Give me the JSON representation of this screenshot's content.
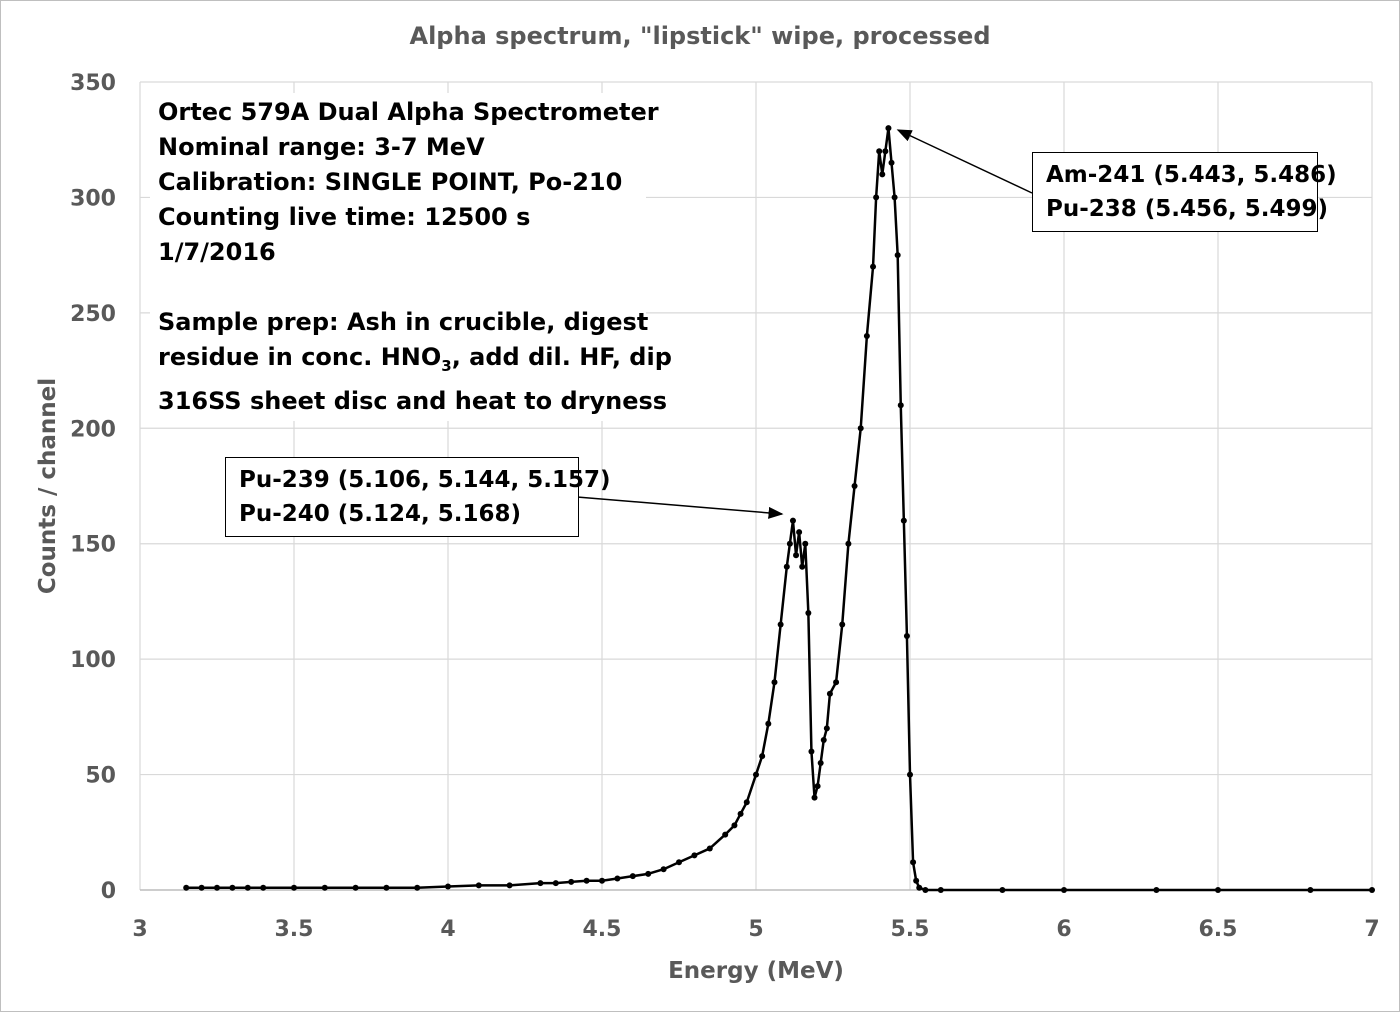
{
  "chart_data": {
    "type": "line",
    "title": "Alpha spectrum, \"lipstick\" wipe, processed",
    "xlabel": "Energy (MeV)",
    "ylabel": "Counts / channel",
    "xlim": [
      3,
      7
    ],
    "ylim": [
      0,
      350
    ],
    "x_ticks": [
      3,
      3.5,
      4,
      4.5,
      5,
      5.5,
      6,
      6.5,
      7
    ],
    "x_tick_labels": [
      "3",
      "3.5",
      "4",
      "4.5",
      "5",
      "5.5",
      "6",
      "6.5",
      "7"
    ],
    "y_ticks": [
      0,
      50,
      100,
      150,
      200,
      250,
      300,
      350
    ],
    "y_tick_labels": [
      "0",
      "50",
      "100",
      "150",
      "200",
      "250",
      "300",
      "350"
    ],
    "grid": true,
    "series": [
      {
        "name": "Alpha spectrum",
        "color": "#000000",
        "marker": "circle",
        "x": [
          3.15,
          3.2,
          3.25,
          3.3,
          3.35,
          3.4,
          3.5,
          3.6,
          3.7,
          3.8,
          3.9,
          4.0,
          4.1,
          4.2,
          4.3,
          4.35,
          4.4,
          4.45,
          4.5,
          4.55,
          4.6,
          4.65,
          4.7,
          4.75,
          4.8,
          4.85,
          4.9,
          4.93,
          4.95,
          4.97,
          5.0,
          5.02,
          5.04,
          5.06,
          5.08,
          5.1,
          5.11,
          5.12,
          5.13,
          5.14,
          5.15,
          5.16,
          5.17,
          5.18,
          5.19,
          5.2,
          5.21,
          5.22,
          5.23,
          5.24,
          5.26,
          5.28,
          5.3,
          5.32,
          5.34,
          5.36,
          5.38,
          5.39,
          5.4,
          5.41,
          5.42,
          5.43,
          5.44,
          5.45,
          5.46,
          5.47,
          5.48,
          5.49,
          5.5,
          5.51,
          5.52,
          5.53,
          5.55,
          5.6,
          5.8,
          6.0,
          6.3,
          6.5,
          6.8,
          7.0
        ],
        "y": [
          1,
          1,
          1,
          1,
          1,
          1,
          1,
          1,
          1,
          1,
          1,
          1.5,
          2,
          2,
          3,
          3,
          3.5,
          4,
          4,
          5,
          6,
          7,
          9,
          12,
          15,
          18,
          24,
          28,
          33,
          38,
          50,
          58,
          72,
          90,
          115,
          140,
          150,
          160,
          145,
          155,
          140,
          150,
          120,
          60,
          40,
          45,
          55,
          65,
          70,
          85,
          90,
          115,
          150,
          175,
          200,
          240,
          270,
          300,
          320,
          310,
          320,
          330,
          315,
          300,
          275,
          210,
          160,
          110,
          50,
          12,
          4,
          1,
          0,
          0,
          0,
          0,
          0,
          0,
          0,
          0
        ]
      }
    ],
    "annotations": [
      {
        "lines": [
          "Am-241 (5.443, 5.486)",
          "Pu-238 (5.456, 5.499)"
        ],
        "arrow_to": [
          5.45,
          330
        ]
      },
      {
        "lines": [
          "Pu-239 (5.106, 5.144, 5.157)",
          "Pu-240 (5.124, 5.168)"
        ],
        "arrow_to": [
          5.09,
          160
        ]
      }
    ],
    "info_text": {
      "line1": "Ortec 579A Dual Alpha Spectrometer",
      "line2": "Nominal range: 3-7 MeV",
      "line3": "Calibration: SINGLE POINT, Po-210",
      "line4": "Counting live time: 12500 s",
      "line5": "1/7/2016",
      "prep1": "Sample prep: Ash in crucible, digest",
      "prep2_a": "residue in conc. HNO",
      "prep2_sub": "3",
      "prep2_b": ", add dil. HF, dip",
      "prep3": "316SS sheet disc and heat to dryness"
    }
  }
}
